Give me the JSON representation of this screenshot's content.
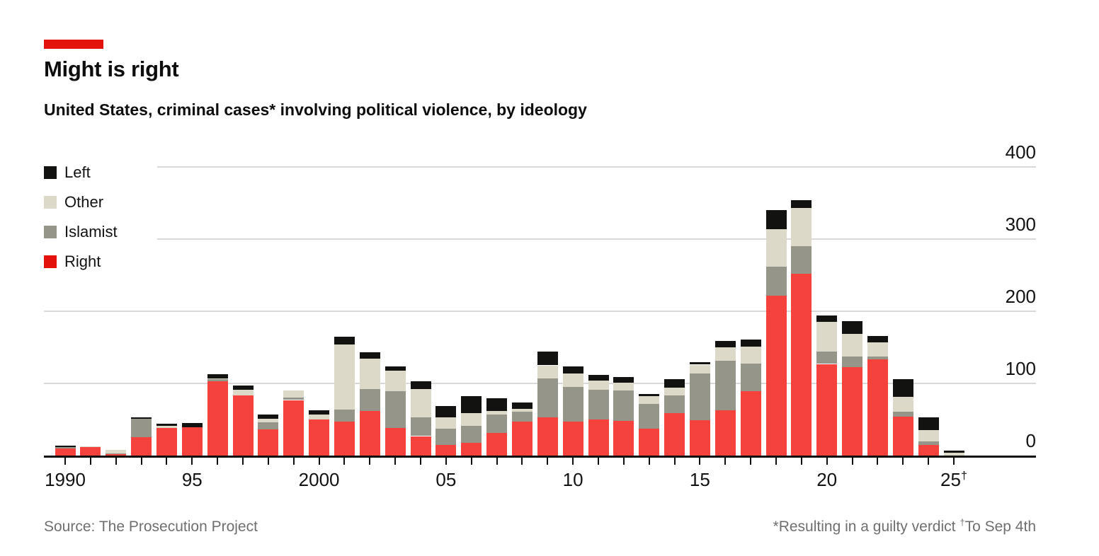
{
  "header": {
    "title": "Might is right",
    "subtitle": "United States, criminal cases* involving political violence, by ideology"
  },
  "accent_color": "#e3120b",
  "legend": [
    {
      "label": "Left",
      "color": "#121211"
    },
    {
      "label": "Other",
      "color": "#ddd9c8"
    },
    {
      "label": "Islamist",
      "color": "#96958a"
    },
    {
      "label": "Right",
      "color": "#e3120b"
    }
  ],
  "footer": {
    "source": "Source: The Prosecution Project",
    "footnote_asterisk": "*Resulting in a guilty verdict",
    "dagger_symbol": "†",
    "footnote_dagger": "To Sep 4th"
  },
  "chart_data": {
    "type": "bar",
    "variant": "stacked",
    "title": "Might is right",
    "subtitle": "United States, criminal cases* involving political violence, by ideology",
    "grid": "horizontal",
    "legend_position": "top-left",
    "ylim": [
      0,
      400
    ],
    "y_ticks": [
      0,
      100,
      200,
      300,
      400
    ],
    "years": [
      1990,
      1991,
      1992,
      1993,
      1994,
      1995,
      1996,
      1997,
      1998,
      1999,
      2000,
      2001,
      2002,
      2003,
      2004,
      2005,
      2006,
      2007,
      2008,
      2009,
      2010,
      2011,
      2012,
      2013,
      2014,
      2015,
      2016,
      2017,
      2018,
      2019,
      2020,
      2021,
      2022,
      2023,
      2024,
      2025
    ],
    "x_axis_labels": [
      {
        "year": 1990,
        "label": "1990"
      },
      {
        "year": 1995,
        "label": "95"
      },
      {
        "year": 2000,
        "label": "2000"
      },
      {
        "year": 2005,
        "label": "05"
      },
      {
        "year": 2010,
        "label": "10"
      },
      {
        "year": 2015,
        "label": "15"
      },
      {
        "year": 2020,
        "label": "20"
      },
      {
        "year": 2025,
        "label": "25†"
      }
    ],
    "stack_order_bottom_to_top": [
      "Right",
      "Islamist",
      "Other",
      "Left"
    ],
    "series": [
      {
        "name": "Right",
        "color": "#f6423c",
        "values": [
          10,
          12,
          2,
          26,
          38,
          39,
          103,
          83,
          36,
          77,
          50,
          47,
          62,
          38,
          27,
          15,
          18,
          31,
          47,
          53,
          47,
          50,
          48,
          37,
          59,
          49,
          63,
          89,
          222,
          252,
          127,
          123,
          133,
          54,
          15,
          0
        ]
      },
      {
        "name": "Islamist",
        "color": "#96958a",
        "values": [
          2,
          0,
          1,
          25,
          0,
          0,
          3,
          0,
          10,
          3,
          0,
          17,
          30,
          51,
          26,
          22,
          23,
          26,
          14,
          54,
          48,
          41,
          42,
          35,
          24,
          65,
          68,
          39,
          40,
          38,
          17,
          14,
          4,
          7,
          5,
          0
        ]
      },
      {
        "name": "Other",
        "color": "#ddd9c8",
        "values": [
          0,
          1,
          5,
          0,
          3,
          0,
          1,
          8,
          5,
          10,
          7,
          90,
          42,
          29,
          39,
          16,
          18,
          5,
          4,
          18,
          19,
          13,
          11,
          10,
          11,
          12,
          19,
          23,
          52,
          53,
          41,
          32,
          20,
          20,
          15,
          4
        ]
      },
      {
        "name": "Left",
        "color": "#121211",
        "values": [
          2,
          0,
          0,
          2,
          3,
          6,
          6,
          6,
          6,
          0,
          6,
          11,
          9,
          6,
          11,
          16,
          23,
          17,
          9,
          19,
          10,
          8,
          8,
          3,
          12,
          3,
          9,
          10,
          26,
          11,
          9,
          17,
          9,
          25,
          18,
          3
        ]
      }
    ]
  }
}
